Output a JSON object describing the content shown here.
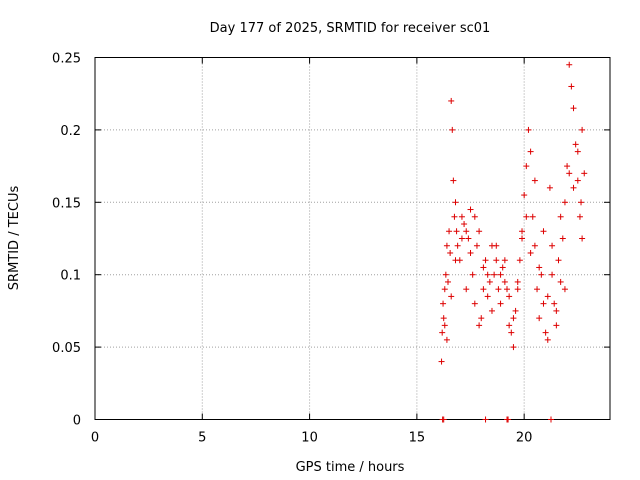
{
  "chart_data": {
    "type": "scatter",
    "title": "Day 177 of 2025, SRMTID for receiver sc01",
    "xlabel": "GPS time / hours",
    "ylabel": "SRMTID / TECUs",
    "xlim": [
      0,
      24
    ],
    "ylim": [
      0,
      0.25
    ],
    "xticks": [
      0,
      5,
      10,
      15,
      20
    ],
    "xtick_labels": [
      "0",
      "5",
      "10",
      "15",
      "20"
    ],
    "yticks": [
      0,
      0.05,
      0.1,
      0.15,
      0.2,
      0.25
    ],
    "ytick_labels": [
      "0",
      "0.05",
      "0.1",
      "0.15",
      "0.2",
      "0.25"
    ],
    "grid": true,
    "marker": "+",
    "color": "#dd0000",
    "series": [
      {
        "name": "sc01",
        "x": [
          16.15,
          16.18,
          16.22,
          16.25,
          16.3,
          16.35,
          16.4,
          16.45,
          16.5,
          16.55,
          16.6,
          16.65,
          16.7,
          16.75,
          16.8,
          16.85,
          16.9,
          17.0,
          17.1,
          17.2,
          17.3,
          17.4,
          17.5,
          17.6,
          17.7,
          17.8,
          17.9,
          18.0,
          18.1,
          18.2,
          18.3,
          18.4,
          18.5,
          18.6,
          18.7,
          18.8,
          18.9,
          19.0,
          19.1,
          19.2,
          19.3,
          19.4,
          19.5,
          19.6,
          19.7,
          19.8,
          19.9,
          20.0,
          20.1,
          20.2,
          20.3,
          20.4,
          20.5,
          20.6,
          20.7,
          20.8,
          20.9,
          21.0,
          21.1,
          21.2,
          21.3,
          21.4,
          21.5,
          21.6,
          21.7,
          21.8,
          21.9,
          22.0,
          22.1,
          22.2,
          22.3,
          22.4,
          22.5,
          22.6,
          22.7,
          22.8,
          16.4,
          16.6,
          17.1,
          17.5,
          17.9,
          18.3,
          18.7,
          19.1,
          19.5,
          19.9,
          20.3,
          20.7,
          21.1,
          21.5,
          21.9,
          22.3,
          22.7,
          16.3,
          16.8,
          17.3,
          17.7,
          18.1,
          18.5,
          18.9,
          19.3,
          19.7,
          20.1,
          20.5,
          20.9,
          21.3,
          21.7,
          22.1,
          22.5,
          22.65,
          16.2,
          16.25,
          18.2,
          19.2,
          19.25,
          21.25
        ],
        "y": [
          0.04,
          0.06,
          0.08,
          0.07,
          0.09,
          0.1,
          0.12,
          0.095,
          0.13,
          0.115,
          0.22,
          0.2,
          0.165,
          0.14,
          0.15,
          0.13,
          0.12,
          0.11,
          0.14,
          0.135,
          0.09,
          0.125,
          0.145,
          0.1,
          0.08,
          0.12,
          0.13,
          0.07,
          0.09,
          0.11,
          0.085,
          0.095,
          0.075,
          0.1,
          0.12,
          0.09,
          0.08,
          0.105,
          0.11,
          0.09,
          0.085,
          0.06,
          0.05,
          0.075,
          0.095,
          0.11,
          0.13,
          0.155,
          0.175,
          0.2,
          0.185,
          0.14,
          0.12,
          0.09,
          0.07,
          0.1,
          0.13,
          0.06,
          0.055,
          0.16,
          0.1,
          0.08,
          0.065,
          0.11,
          0.14,
          0.125,
          0.15,
          0.175,
          0.245,
          0.23,
          0.215,
          0.19,
          0.165,
          0.14,
          0.125,
          0.17,
          0.055,
          0.085,
          0.125,
          0.115,
          0.065,
          0.1,
          0.11,
          0.095,
          0.07,
          0.125,
          0.115,
          0.105,
          0.085,
          0.075,
          0.09,
          0.16,
          0.2,
          0.065,
          0.11,
          0.13,
          0.14,
          0.105,
          0.12,
          0.1,
          0.065,
          0.09,
          0.14,
          0.165,
          0.08,
          0.12,
          0.095,
          0.17,
          0.185,
          0.15,
          0.0,
          0.0,
          0.0,
          0.0,
          0.0,
          0.0
        ]
      }
    ]
  }
}
